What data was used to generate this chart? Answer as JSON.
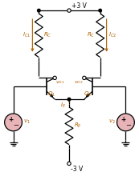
{
  "bg_color": "#ffffff",
  "line_color": "#000000",
  "text_color_blue": "#b06000",
  "component_color": "#e8b4b8",
  "fig_width": 1.73,
  "fig_height": 2.2,
  "dpi": 100,
  "vcc": "+3 V",
  "vee": "-3 V"
}
